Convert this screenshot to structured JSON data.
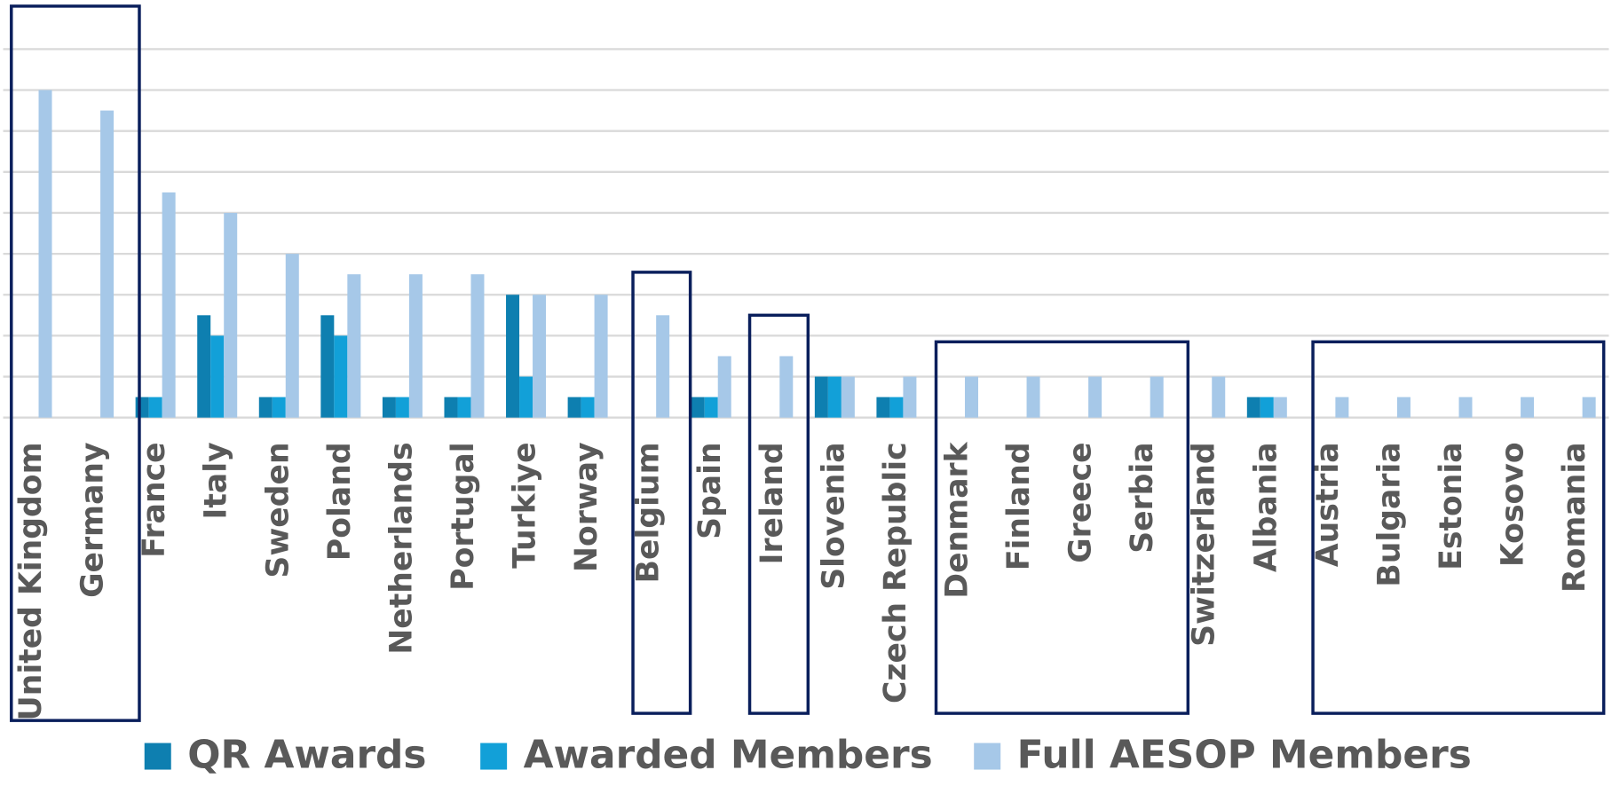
{
  "chart_data": {
    "type": "bar",
    "categories": [
      "United Kingdom",
      "Germany",
      "France",
      "Italy",
      "Sweden",
      "Poland",
      "Netherlands",
      "Portugal",
      "Turkiye",
      "Norway",
      "Belgium",
      "Spain",
      "Ireland",
      "Slovenia",
      "Czech Republic",
      "Denmark",
      "Finland",
      "Greece",
      "Serbia",
      "Switzerland",
      "Albania",
      "Austria",
      "Bulgaria",
      "Estonia",
      "Kosovo",
      "Romania"
    ],
    "series": [
      {
        "name": "QR Awards",
        "color": "#0e7fb0",
        "values": [
          0,
          0,
          1,
          5,
          1,
          5,
          1,
          1,
          6,
          1,
          0,
          1,
          0,
          2,
          1,
          0,
          0,
          0,
          0,
          0,
          1,
          0,
          0,
          0,
          0,
          0
        ]
      },
      {
        "name": "Awarded Members",
        "color": "#12a0d8",
        "values": [
          0,
          0,
          1,
          4,
          1,
          4,
          1,
          1,
          2,
          1,
          0,
          1,
          0,
          2,
          1,
          0,
          0,
          0,
          0,
          0,
          1,
          0,
          0,
          0,
          0,
          0
        ]
      },
      {
        "name": "Full AESOP Members",
        "color": "#a6c8e8",
        "values": [
          16,
          15,
          11,
          10,
          8,
          7,
          7,
          7,
          6,
          6,
          5,
          3,
          3,
          2,
          2,
          2,
          2,
          2,
          2,
          2,
          1,
          1,
          1,
          1,
          1,
          1
        ]
      }
    ],
    "ylim": [
      0,
      18
    ],
    "yticks": [
      0,
      2,
      4,
      6,
      8,
      10,
      12,
      14,
      16,
      18
    ],
    "grid": true
  }
}
